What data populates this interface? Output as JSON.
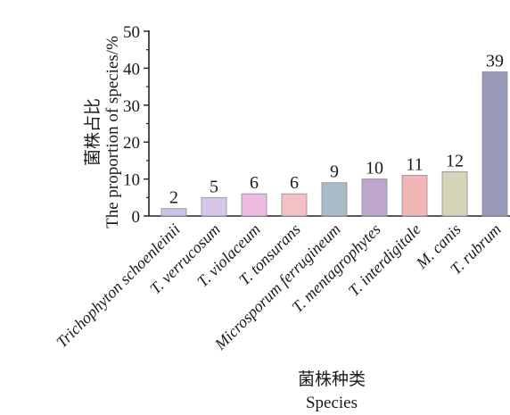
{
  "chart_data": {
    "type": "bar",
    "categories": [
      "Trichophyton schoenleinii",
      "T. verrucosum",
      "T. violaceum",
      "T. tonsurans",
      "Microsporum ferrugineum",
      "T. mentagrophytes",
      "T. interdigitale",
      "M. canis",
      "T. rubrum"
    ],
    "values": [
      2,
      5,
      6,
      6,
      9,
      10,
      11,
      12,
      39
    ],
    "data_labels": [
      "2",
      "5",
      "6",
      "6",
      "9",
      "10",
      "11",
      "12",
      "39"
    ],
    "bar_colors": [
      "#c6c6e8",
      "#d9c5e6",
      "#eebbe2",
      "#f4c0c2",
      "#a8bcc8",
      "#bea6cc",
      "#f2b6b6",
      "#d6d4b6",
      "#9898b8"
    ],
    "ylabel_cn": "菌株占比",
    "ylabel": "The proportion of species/%",
    "xlabel_cn": "菌株种类",
    "xlabel": "Species",
    "ylim": [
      0,
      50
    ],
    "yticks": [
      0,
      10,
      20,
      30,
      40,
      50
    ],
    "ytick_labels": [
      "0",
      "10",
      "20",
      "30",
      "40",
      "50"
    ],
    "grid": false,
    "legend": "none"
  }
}
